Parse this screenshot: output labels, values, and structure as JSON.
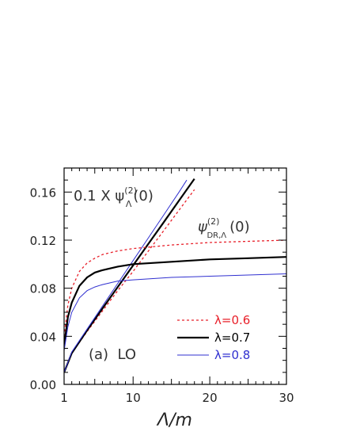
{
  "chart_data": {
    "type": "line",
    "title": "",
    "xlabel": "Λ/m",
    "ylabel": "",
    "xlim": [
      1,
      30
    ],
    "ylim": [
      0,
      0.18
    ],
    "x_ticks": [
      {
        "value": 1,
        "label": "1"
      },
      {
        "value": 10,
        "label": "10"
      },
      {
        "value": 20,
        "label": "20"
      },
      {
        "value": 30,
        "label": "30"
      }
    ],
    "y_ticks": [
      {
        "value": 0.0,
        "label": "0.00"
      },
      {
        "value": 0.04,
        "label": "0.04"
      },
      {
        "value": 0.08,
        "label": "0.08"
      },
      {
        "value": 0.12,
        "label": "0.12"
      },
      {
        "value": 0.16,
        "label": "0.16"
      }
    ],
    "annotations": {
      "panel": "(a)  LO",
      "top_label_prefix": "0.1 X ψ",
      "top_label_sup": "(2)",
      "top_label_sub": "Λ",
      "top_label_suffix": "(0)",
      "dr_label_prefix": "ψ",
      "dr_label_sup": "(2)",
      "dr_label_sub": "DR,Λ",
      "dr_label_suffix": "(0)"
    },
    "legend_position": "bottom-right",
    "series": [
      {
        "name": "λ=0.6",
        "group": "cutoff",
        "color": "#e8202a",
        "dash": "3,3",
        "width": 1.3,
        "x": [
          1,
          2,
          4,
          6,
          8,
          10,
          12,
          14,
          16,
          18
        ],
        "y": [
          0.01,
          0.026,
          0.044,
          0.061,
          0.078,
          0.094,
          0.111,
          0.128,
          0.145,
          0.162
        ]
      },
      {
        "name": "λ=0.7",
        "group": "cutoff",
        "color": "#000000",
        "dash": "",
        "width": 2.2,
        "x": [
          1,
          2,
          4,
          6,
          8,
          10,
          12,
          14,
          16,
          18
        ],
        "y": [
          0.01,
          0.026,
          0.045,
          0.063,
          0.081,
          0.099,
          0.117,
          0.135,
          0.153,
          0.171
        ]
      },
      {
        "name": "λ=0.8",
        "group": "cutoff",
        "color": "#3030d0",
        "dash": "",
        "width": 1.0,
        "x": [
          1,
          2,
          4,
          6,
          8,
          10,
          12,
          14,
          16,
          17
        ],
        "y": [
          0.01,
          0.027,
          0.046,
          0.065,
          0.084,
          0.103,
          0.122,
          0.141,
          0.16,
          0.17
        ]
      },
      {
        "name": "λ=0.6",
        "group": "dr",
        "color": "#e8202a",
        "dash": "3,3",
        "width": 1.3,
        "x": [
          1,
          1.5,
          2,
          3,
          4,
          5,
          6,
          8,
          10,
          15,
          20,
          25,
          30
        ],
        "y": [
          0.04,
          0.066,
          0.08,
          0.094,
          0.101,
          0.105,
          0.108,
          0.111,
          0.113,
          0.116,
          0.118,
          0.119,
          0.12
        ]
      },
      {
        "name": "λ=0.7",
        "group": "dr",
        "color": "#000000",
        "dash": "",
        "width": 2.2,
        "x": [
          1,
          1.5,
          2,
          3,
          4,
          5,
          6,
          8,
          10,
          15,
          20,
          25,
          30
        ],
        "y": [
          0.032,
          0.056,
          0.068,
          0.082,
          0.089,
          0.093,
          0.095,
          0.098,
          0.1,
          0.102,
          0.104,
          0.105,
          0.106
        ]
      },
      {
        "name": "λ=0.8",
        "group": "dr",
        "color": "#3030d0",
        "dash": "",
        "width": 1.0,
        "x": [
          1,
          1.5,
          2,
          3,
          4,
          5,
          6,
          8,
          10,
          15,
          20,
          25,
          30
        ],
        "y": [
          0.028,
          0.048,
          0.06,
          0.072,
          0.078,
          0.081,
          0.083,
          0.086,
          0.087,
          0.089,
          0.09,
          0.091,
          0.092
        ]
      }
    ]
  }
}
